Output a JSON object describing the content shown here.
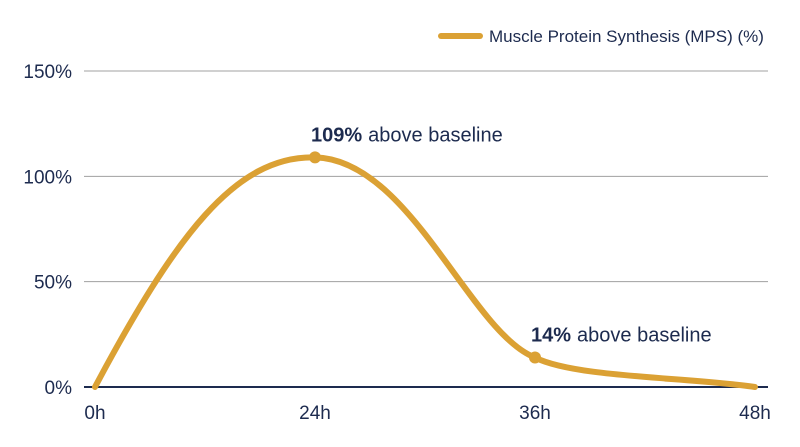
{
  "chart_data": {
    "type": "line",
    "title": "",
    "xlabel": "",
    "ylabel": "",
    "x": [
      "0h",
      "24h",
      "36h",
      "48h"
    ],
    "x_hours": [
      0,
      24,
      36,
      48
    ],
    "ylim": [
      0,
      150
    ],
    "y_ticks": [
      0,
      50,
      100,
      150
    ],
    "y_tick_labels": [
      "0%",
      "50%",
      "100%",
      "150%"
    ],
    "grid": "horizontal",
    "legend_position": "top-right",
    "series": [
      {
        "name": "Muscle Protein Synthesis (MPS) (%)",
        "color": "#dba134",
        "points": [
          {
            "x": 0,
            "y": 0
          },
          {
            "x": 24,
            "y": 109
          },
          {
            "x": 36,
            "y": 14
          },
          {
            "x": 48,
            "y": 0
          }
        ]
      }
    ],
    "annotations": [
      {
        "x": 24,
        "y": 109,
        "value": "109%",
        "text": "above baseline"
      },
      {
        "x": 36,
        "y": 14,
        "value": "14%",
        "text": "above baseline"
      }
    ],
    "colors": {
      "axis_text": "#1d2b4f",
      "baseline": "#1d2b4f",
      "gridline": "#a0a0a0"
    }
  }
}
